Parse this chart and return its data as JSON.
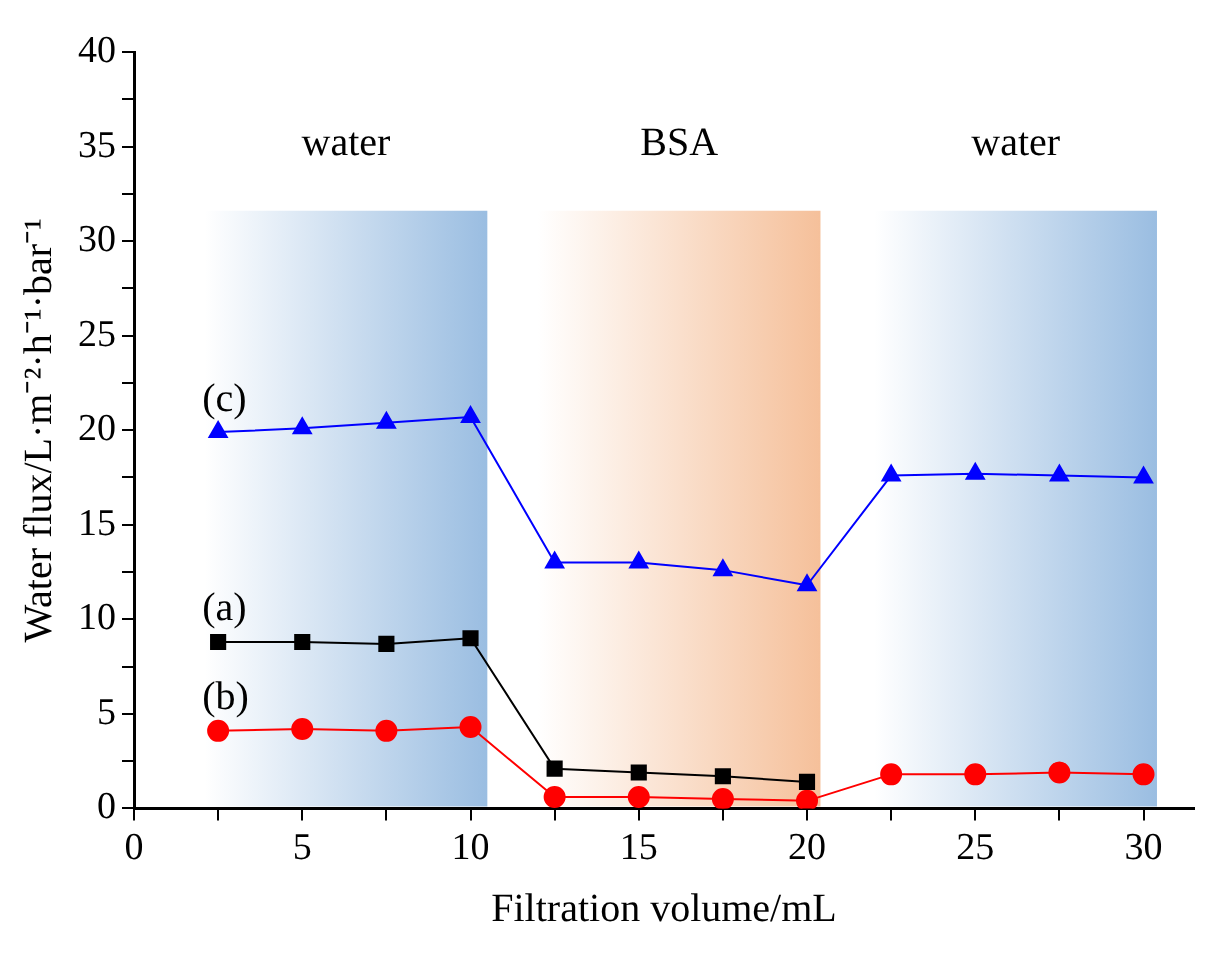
{
  "chart_data": {
    "type": "line",
    "xlabel": "Filtration volume/mL",
    "ylabel": "Water flux/L·m⁻²·h⁻¹·bar⁻¹",
    "xlim": [
      0,
      31.5
    ],
    "xticks": [
      0,
      {
        "value": 2.5,
        "label": null
      },
      5,
      {
        "value": 7.5,
        "label": null
      },
      10,
      {
        "value": 12.5,
        "label": null
      },
      15,
      {
        "value": 17.5,
        "label": null
      },
      20,
      {
        "value": 22.5,
        "label": null
      },
      25,
      {
        "value": 27.5,
        "label": null
      },
      30
    ],
    "ylim": [
      0,
      40
    ],
    "yticks": [
      0,
      {
        "value": 2.5,
        "label": null
      },
      5,
      {
        "value": 7.5,
        "label": null
      },
      10,
      {
        "value": 12.5,
        "label": null
      },
      15,
      {
        "value": 17.5,
        "label": null
      },
      20,
      {
        "value": 22.5,
        "label": null
      },
      25,
      {
        "value": 27.5,
        "label": null
      },
      30,
      {
        "value": 32.5,
        "label": null
      },
      35,
      {
        "value": 37.5,
        "label": null
      },
      40
    ],
    "x": [
      2.5,
      5,
      7.5,
      10,
      12.5,
      15,
      17.5,
      20,
      22.5,
      25,
      27.5,
      30
    ],
    "series": [
      {
        "name": "(a)",
        "color": "#000000",
        "marker": "square",
        "values": [
          8.8,
          8.8,
          8.7,
          9.0,
          2.1,
          1.9,
          1.7,
          1.4,
          null,
          null,
          null,
          null
        ]
      },
      {
        "name": "(b)",
        "color": "#ff0000",
        "marker": "circle",
        "values": [
          4.1,
          4.2,
          4.1,
          4.3,
          0.6,
          0.6,
          0.5,
          0.4,
          1.8,
          1.8,
          1.9,
          1.8
        ]
      },
      {
        "name": "(c)",
        "color": "#0000ff",
        "marker": "triangle",
        "values": [
          19.9,
          20.1,
          20.4,
          20.7,
          13.0,
          13.0,
          12.6,
          11.8,
          17.6,
          17.7,
          17.6,
          17.5
        ]
      }
    ],
    "bands": [
      {
        "axis": "x",
        "from": 2.1,
        "to": 10.5,
        "label": "water",
        "color": "#8fb6de"
      },
      {
        "axis": "x",
        "from": 12.0,
        "to": 20.4,
        "label": "BSA",
        "color": "#f4b98f"
      },
      {
        "axis": "x",
        "from": 22.0,
        "to": 30.4,
        "label": "water",
        "color": "#8fb6de"
      }
    ],
    "grid": false,
    "legend": false
  }
}
